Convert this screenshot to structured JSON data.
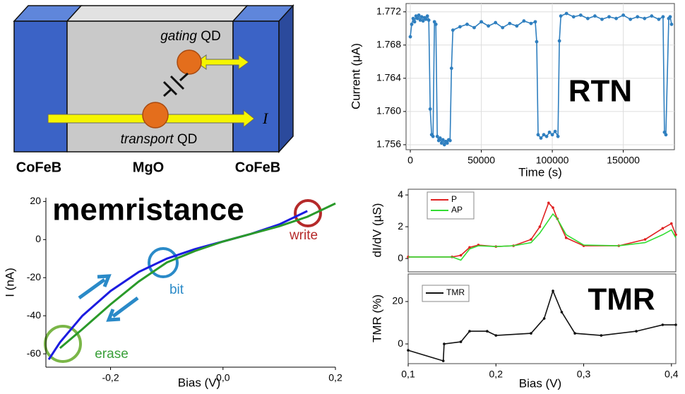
{
  "diagram": {
    "labels": [
      "CoFeB",
      "MgO",
      "CoFeB"
    ],
    "gating": [
      "gating",
      "QD"
    ],
    "transport": [
      "transport",
      "QD"
    ],
    "current": "I"
  },
  "chart_data": [
    {
      "type": "line",
      "xlabel": "Time (s)",
      "ylabel": "Current (μA)",
      "grid": true,
      "annotations": [
        "RTN"
      ],
      "xlim": [
        -3000,
        186000
      ],
      "ylim": [
        1.7554,
        1.773
      ],
      "xticks": [
        0,
        50000,
        100000,
        150000
      ],
      "yticks": [
        1.756,
        {
          "value": 1.76,
          "label": "1.760"
        },
        1.764,
        1.768,
        1.772
      ],
      "x": [
        0,
        1000,
        2000,
        3000,
        4000,
        5000,
        6000,
        7000,
        8000,
        9000,
        10000,
        11000,
        12000,
        13000,
        14000,
        15000,
        16000,
        17000,
        18000,
        19000,
        20000,
        21000,
        22000,
        23000,
        24000,
        25000,
        26000,
        27000,
        28000,
        29000,
        30000,
        35000,
        40000,
        45000,
        50000,
        55000,
        60000,
        65000,
        70000,
        75000,
        80000,
        85000,
        88000,
        89000,
        90000,
        92000,
        94000,
        96000,
        98000,
        100000,
        102000,
        104000,
        105000,
        106000,
        110000,
        115000,
        120000,
        125000,
        130000,
        135000,
        140000,
        145000,
        150000,
        155000,
        160000,
        165000,
        170000,
        175000,
        178000,
        179000,
        180000,
        182000,
        183000,
        184000
      ],
      "series": [
        {
          "color": "#2f7fbf",
          "markers": true,
          "values": [
            1.769,
            1.7705,
            1.7712,
            1.7708,
            1.7715,
            1.7712,
            1.7716,
            1.771,
            1.7714,
            1.7709,
            1.7713,
            1.7711,
            1.7715,
            1.771,
            1.7603,
            1.7572,
            1.757,
            1.7708,
            1.7705,
            1.757,
            1.7565,
            1.7568,
            1.7562,
            1.7566,
            1.756,
            1.7564,
            1.7562,
            1.7566,
            1.7565,
            1.7652,
            1.7698,
            1.7702,
            1.7705,
            1.7701,
            1.7708,
            1.7703,
            1.7707,
            1.7701,
            1.7706,
            1.7703,
            1.7709,
            1.7706,
            1.7708,
            1.7684,
            1.7572,
            1.7568,
            1.7572,
            1.757,
            1.7575,
            1.7572,
            1.7576,
            1.757,
            1.7685,
            1.7715,
            1.7718,
            1.7714,
            1.7716,
            1.7712,
            1.7715,
            1.7711,
            1.7714,
            1.7712,
            1.7716,
            1.7711,
            1.7714,
            1.7712,
            1.7715,
            1.7711,
            1.7714,
            1.7575,
            1.7572,
            1.7712,
            1.7714,
            1.7705
          ]
        }
      ]
    },
    {
      "type": "line",
      "xlabel": "Bias (V)",
      "ylabel": "I (nA)",
      "grid": false,
      "annotations": [
        "memristance",
        "write",
        "bit",
        "erase"
      ],
      "annotation_colors": [
        "#000000",
        "#b52a2a",
        "#2a8ac8",
        "#3aa03a"
      ],
      "xlim": [
        -0.315,
        0.2
      ],
      "ylim": [
        -67,
        22
      ],
      "xticks": [
        {
          "value": -0.2,
          "label": "-0,2"
        },
        {
          "value": 0,
          "label": "0,0"
        },
        {
          "value": 0.2,
          "label": "0,2"
        }
      ],
      "yticks": [
        20,
        0,
        -20,
        -40,
        -60
      ],
      "x": [
        -0.31,
        -0.29,
        -0.25,
        -0.2,
        -0.15,
        -0.1,
        -0.05,
        0,
        0.05,
        0.1,
        0.15,
        0.2
      ],
      "series": [
        {
          "color": "#1c1ce0",
          "values": [
            -63,
            -54,
            -40,
            -27,
            -17,
            -10,
            -5,
            -1,
            3,
            8,
            15,
            null
          ]
        },
        {
          "color": "#2a9a2a",
          "values": [
            null,
            -57,
            -47,
            -34,
            -22,
            -12,
            -6,
            -1,
            3,
            7,
            12,
            19
          ]
        }
      ]
    },
    {
      "type": "line",
      "ylabel": "dI/dV (µS)",
      "grid": false,
      "legend": "upper-left",
      "xlim": [
        0.1,
        0.405
      ],
      "ylim": [
        -0.84,
        4.36
      ],
      "yticks": [
        0,
        2,
        4
      ],
      "x": [
        0.1,
        0.15,
        0.16,
        0.17,
        0.18,
        0.2,
        0.22,
        0.24,
        0.25,
        0.26,
        0.265,
        0.27,
        0.28,
        0.3,
        0.34,
        0.37,
        0.39,
        0.4,
        0.405
      ],
      "series": [
        {
          "name": "P",
          "color": "#e02020",
          "markers": true,
          "values": [
            0.1,
            0.1,
            0.2,
            0.7,
            0.85,
            0.75,
            0.8,
            1.2,
            2,
            3.5,
            3.2,
            2.5,
            1.3,
            0.8,
            0.8,
            1.2,
            1.9,
            2.2,
            1.5
          ]
        },
        {
          "name": "AP",
          "color": "#33dd33",
          "values": [
            0.1,
            0.1,
            -0.1,
            0.6,
            0.8,
            0.75,
            0.8,
            1.0,
            1.6,
            2.4,
            2.8,
            2.5,
            1.5,
            0.85,
            0.8,
            1.0,
            1.5,
            1.8,
            1.3
          ]
        }
      ]
    },
    {
      "type": "line",
      "xlabel": "Bias (V)",
      "ylabel": "TMR (%)",
      "grid": false,
      "legend": "upper-left",
      "annotations": [
        "TMR"
      ],
      "annotation_colors": [
        "#000000"
      ],
      "xlim": [
        0.1,
        0.405
      ],
      "ylim": [
        -9.3,
        33
      ],
      "xticks": [
        {
          "value": 0.1,
          "label": "0,1"
        },
        {
          "value": 0.2,
          "label": "0,2"
        },
        {
          "value": 0.3,
          "label": "0,3"
        },
        {
          "value": 0.4,
          "label": "0,4"
        }
      ],
      "yticks": [
        0,
        20
      ],
      "x": [
        0.1,
        0.14,
        0.141,
        0.16,
        0.17,
        0.19,
        0.2,
        0.24,
        0.255,
        0.265,
        0.275,
        0.29,
        0.32,
        0.36,
        0.39,
        0.405
      ],
      "series": [
        {
          "name": "TMR",
          "color": "#111111",
          "markers": true,
          "values": [
            -3,
            -8,
            0,
            1,
            6,
            6,
            4,
            5,
            12,
            25,
            15,
            5,
            4,
            6,
            9,
            9
          ]
        }
      ]
    }
  ]
}
